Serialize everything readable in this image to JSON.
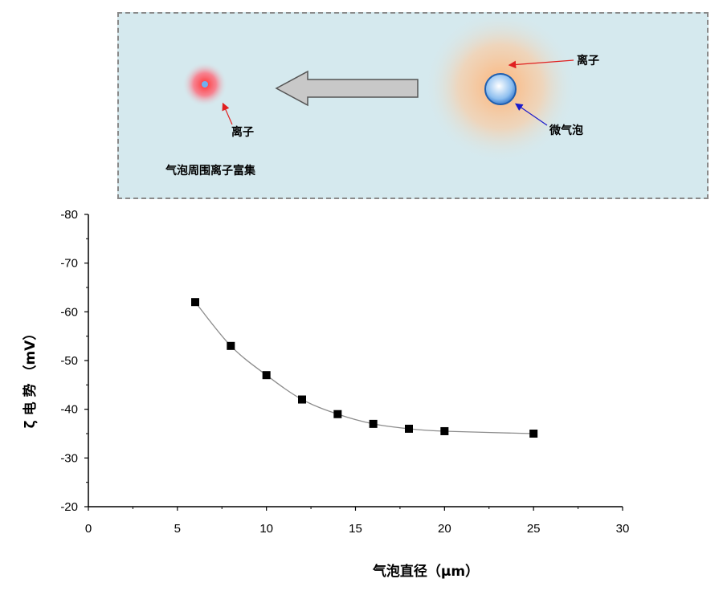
{
  "diagram": {
    "ion_label_right": "离子",
    "bubble_label": "微气泡",
    "ion_label_left": "离子",
    "caption": "气泡周围离子富集"
  },
  "chart_data": {
    "type": "line",
    "title": "",
    "xlabel": "气泡直径（μm）",
    "ylabel": "ζ 电 势 （mV）",
    "xlim": [
      0,
      30
    ],
    "ylim": [
      -20,
      -80
    ],
    "x_ticks": [
      "0",
      "5",
      "10",
      "15",
      "20",
      "25",
      "30"
    ],
    "y_ticks": [
      "-80",
      "-70",
      "-60",
      "-50",
      "-40",
      "-30",
      "-20"
    ],
    "grid": false,
    "legend": "none",
    "series": [
      {
        "marker": "square",
        "color": "#000000",
        "line_color": "#8c8c8c",
        "x": [
          6,
          8,
          10,
          12,
          14,
          16,
          18,
          20,
          25
        ],
        "y": [
          -62,
          -53,
          -47,
          -42,
          -39,
          -37,
          -36,
          -35.5,
          -35
        ]
      }
    ]
  }
}
